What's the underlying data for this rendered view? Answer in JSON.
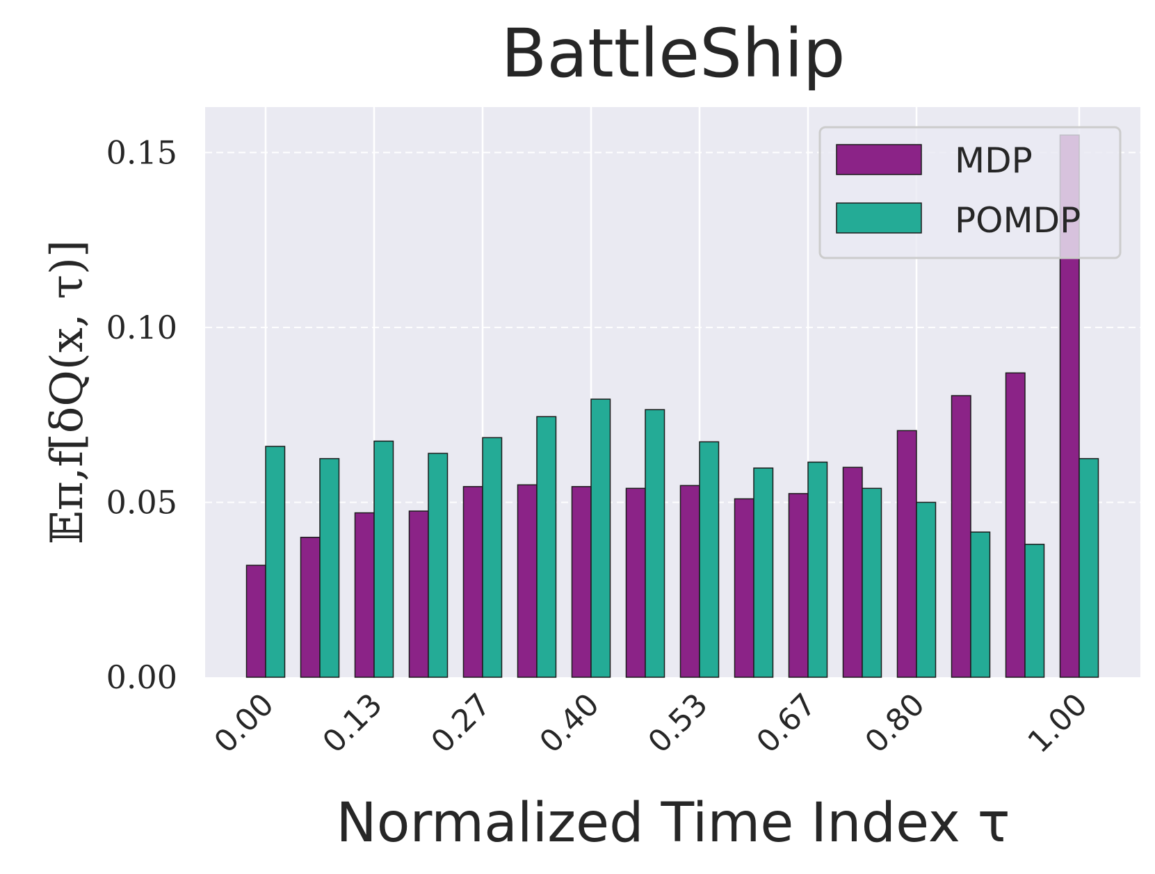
{
  "chart_data": {
    "type": "bar",
    "title": "BattleShip",
    "xlabel": "Normalized Time Index τ",
    "ylabel": "𝔼π,f[δQ(x, τ)]",
    "ylim": [
      0,
      0.163
    ],
    "yticks": [
      0.0,
      0.05,
      0.1,
      0.15
    ],
    "ytick_labels": [
      "0.00",
      "0.05",
      "0.10",
      "0.15"
    ],
    "xtick_labels": [
      "0.00",
      "0.13",
      "0.27",
      "0.40",
      "0.53",
      "0.67",
      "0.80",
      "1.00"
    ],
    "xtick_positions": [
      0,
      2,
      4,
      6,
      8,
      10,
      12,
      15
    ],
    "grid": true,
    "legend_position": "top-right",
    "num_groups": 16,
    "series": [
      {
        "name": "MDP",
        "color": "#8b2387",
        "values": [
          0.032,
          0.04,
          0.047,
          0.0475,
          0.0545,
          0.055,
          0.0545,
          0.054,
          0.0548,
          0.051,
          0.0525,
          0.06,
          0.0705,
          0.0805,
          0.087,
          0.155
        ]
      },
      {
        "name": "POMDP",
        "color": "#24ab96",
        "values": [
          0.066,
          0.0625,
          0.0675,
          0.064,
          0.0685,
          0.0745,
          0.0795,
          0.0765,
          0.0673,
          0.0598,
          0.0615,
          0.054,
          0.05,
          0.0415,
          0.038,
          0.0625
        ]
      }
    ]
  }
}
